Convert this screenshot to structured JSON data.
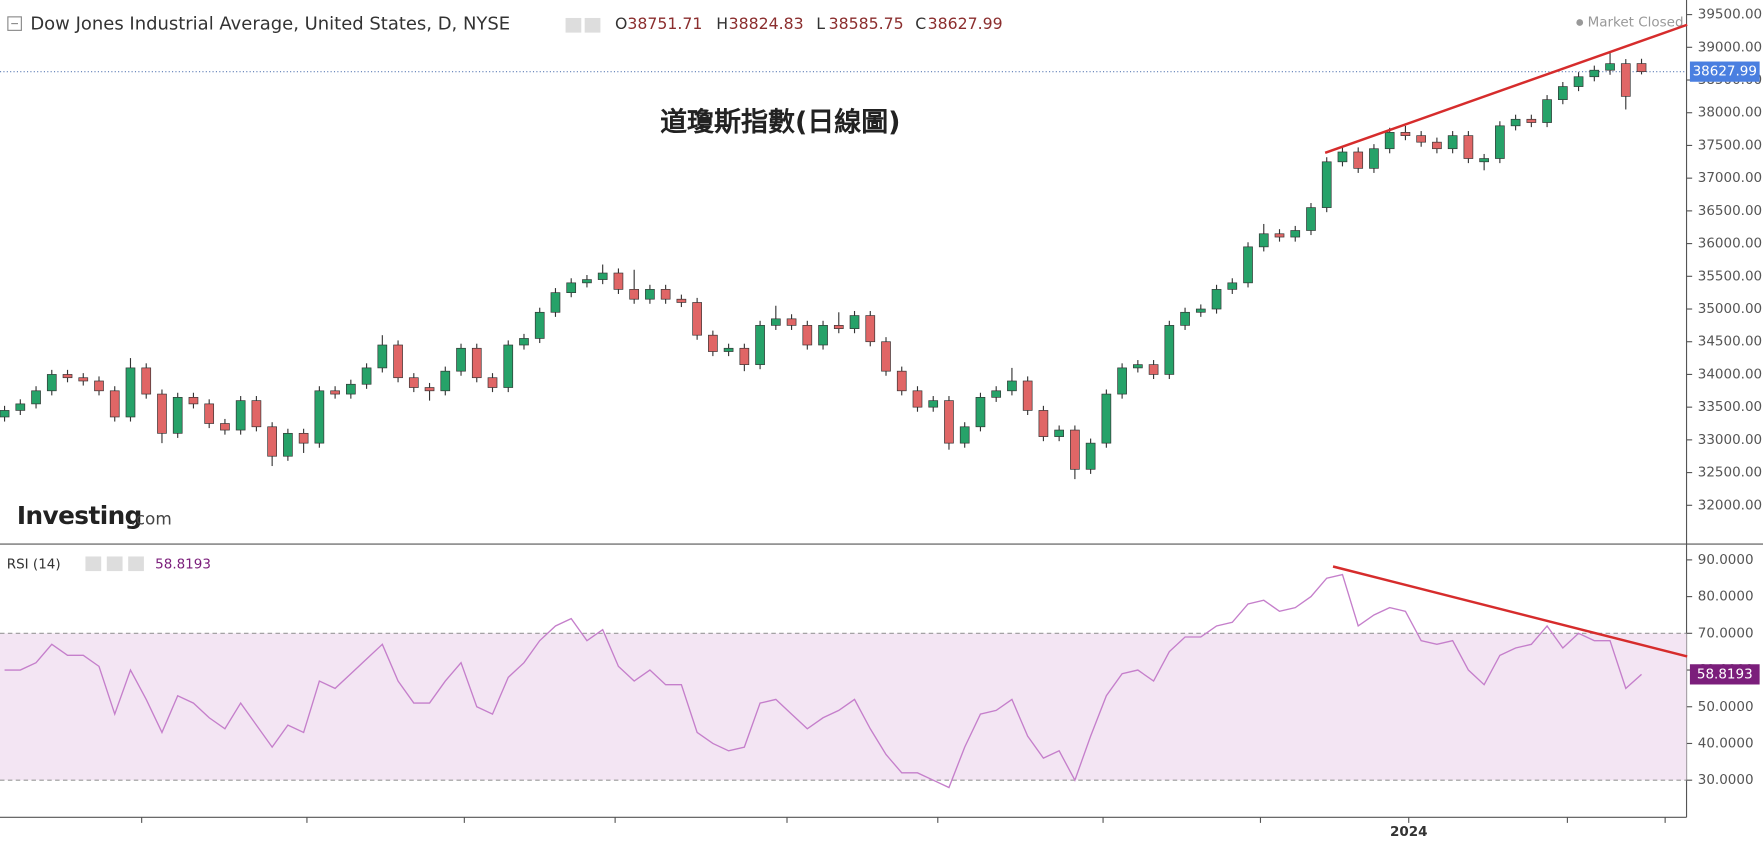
{
  "chart_data": [
    {
      "type": "candlestick",
      "title": "Dow Jones Industrial Average, United States, D, NYSE",
      "status": "Market Closed",
      "annotation": "道瓊斯指數(日線圖)",
      "logo": "Investing",
      "logo_suffix": ".com",
      "ohlc_labels": [
        "O",
        "H",
        "L",
        "C"
      ],
      "up_color": "#26a269",
      "down_color": "#e06666",
      "ohlc": [
        [
          33350,
          33520,
          33280,
          33450
        ],
        [
          33450,
          33620,
          33380,
          33550
        ],
        [
          33550,
          33820,
          33480,
          33750
        ],
        [
          33750,
          34070,
          33680,
          34000
        ],
        [
          34000,
          34070,
          33880,
          33950
        ],
        [
          33950,
          34020,
          33830,
          33900
        ],
        [
          33900,
          33970,
          33680,
          33750
        ],
        [
          33750,
          33820,
          33280,
          33350
        ],
        [
          33350,
          34250,
          33280,
          34100
        ],
        [
          34100,
          34170,
          33630,
          33700
        ],
        [
          33700,
          33770,
          32950,
          33100
        ],
        [
          33100,
          33720,
          33030,
          33650
        ],
        [
          33650,
          33720,
          33480,
          33550
        ],
        [
          33550,
          33620,
          33180,
          33250
        ],
        [
          33250,
          33320,
          33080,
          33150
        ],
        [
          33150,
          33670,
          33080,
          33600
        ],
        [
          33600,
          33670,
          33130,
          33200
        ],
        [
          33200,
          33270,
          32600,
          32750
        ],
        [
          32750,
          33170,
          32680,
          33100
        ],
        [
          33100,
          33170,
          32800,
          32950
        ],
        [
          32950,
          33820,
          32880,
          33750
        ],
        [
          33750,
          33820,
          33630,
          33700
        ],
        [
          33700,
          33920,
          33630,
          33850
        ],
        [
          33850,
          34170,
          33780,
          34100
        ],
        [
          34100,
          34600,
          34030,
          34450
        ],
        [
          34450,
          34520,
          33880,
          33950
        ],
        [
          33950,
          34020,
          33730,
          33800
        ],
        [
          33800,
          33870,
          33600,
          33750
        ],
        [
          33750,
          34120,
          33680,
          34050
        ],
        [
          34050,
          34470,
          33980,
          34400
        ],
        [
          34400,
          34470,
          33880,
          33950
        ],
        [
          33950,
          34020,
          33730,
          33800
        ],
        [
          33800,
          34520,
          33730,
          34450
        ],
        [
          34450,
          34620,
          34380,
          34550
        ],
        [
          34550,
          35020,
          34480,
          34950
        ],
        [
          34950,
          35320,
          34880,
          35250
        ],
        [
          35250,
          35470,
          35180,
          35400
        ],
        [
          35400,
          35520,
          35330,
          35450
        ],
        [
          35450,
          35680,
          35380,
          35550
        ],
        [
          35550,
          35620,
          35230,
          35300
        ],
        [
          35300,
          35600,
          35080,
          35150
        ],
        [
          35150,
          35370,
          35080,
          35300
        ],
        [
          35300,
          35370,
          35080,
          35150
        ],
        [
          35150,
          35220,
          35030,
          35100
        ],
        [
          35100,
          35170,
          34530,
          34600
        ],
        [
          34600,
          34670,
          34280,
          34350
        ],
        [
          34350,
          34470,
          34280,
          34400
        ],
        [
          34400,
          34470,
          34050,
          34150
        ],
        [
          34150,
          34820,
          34080,
          34750
        ],
        [
          34750,
          35050,
          34680,
          34850
        ],
        [
          34850,
          34920,
          34680,
          34750
        ],
        [
          34750,
          34820,
          34380,
          34450
        ],
        [
          34450,
          34820,
          34380,
          34750
        ],
        [
          34750,
          34950,
          34630,
          34700
        ],
        [
          34700,
          34970,
          34630,
          34900
        ],
        [
          34900,
          34970,
          34430,
          34500
        ],
        [
          34500,
          34570,
          33980,
          34050
        ],
        [
          34050,
          34120,
          33680,
          33750
        ],
        [
          33750,
          33820,
          33430,
          33500
        ],
        [
          33500,
          33670,
          33430,
          33600
        ],
        [
          33600,
          33670,
          32850,
          32950
        ],
        [
          32950,
          33270,
          32880,
          33200
        ],
        [
          33200,
          33720,
          33130,
          33650
        ],
        [
          33650,
          33820,
          33580,
          33750
        ],
        [
          33750,
          34100,
          33680,
          33900
        ],
        [
          33900,
          33970,
          33380,
          33450
        ],
        [
          33450,
          33520,
          32980,
          33050
        ],
        [
          33050,
          33220,
          32980,
          33150
        ],
        [
          33150,
          33220,
          32400,
          32550
        ],
        [
          32550,
          33020,
          32480,
          32950
        ],
        [
          32950,
          33770,
          32880,
          33700
        ],
        [
          33700,
          34170,
          33630,
          34100
        ],
        [
          34100,
          34220,
          34030,
          34150
        ],
        [
          34150,
          34220,
          33930,
          34000
        ],
        [
          34000,
          34820,
          33930,
          34750
        ],
        [
          34750,
          35020,
          34680,
          34950
        ],
        [
          34950,
          35070,
          34880,
          35000
        ],
        [
          35000,
          35370,
          34930,
          35300
        ],
        [
          35300,
          35470,
          35230,
          35400
        ],
        [
          35400,
          36020,
          35330,
          35950
        ],
        [
          35950,
          36300,
          35880,
          36150
        ],
        [
          36150,
          36220,
          36030,
          36100
        ],
        [
          36100,
          36270,
          36030,
          36200
        ],
        [
          36200,
          36620,
          36130,
          36550
        ],
        [
          36550,
          37320,
          36480,
          37250
        ],
        [
          37250,
          37470,
          37180,
          37400
        ],
        [
          37400,
          37470,
          37080,
          37150
        ],
        [
          37150,
          37520,
          37080,
          37450
        ],
        [
          37450,
          37770,
          37380,
          37700
        ],
        [
          37700,
          37800,
          37580,
          37650
        ],
        [
          37650,
          37720,
          37480,
          37550
        ],
        [
          37550,
          37620,
          37380,
          37450
        ],
        [
          37450,
          37720,
          37380,
          37650
        ],
        [
          37650,
          37720,
          37230,
          37300
        ],
        [
          37250,
          37370,
          37120,
          37300
        ],
        [
          37300,
          37870,
          37230,
          37800
        ],
        [
          37800,
          37970,
          37730,
          37900
        ],
        [
          37900,
          37970,
          37780,
          37850
        ],
        [
          37850,
          38270,
          37780,
          38200
        ],
        [
          38200,
          38470,
          38130,
          38400
        ],
        [
          38400,
          38620,
          38330,
          38550
        ],
        [
          38550,
          38720,
          38480,
          38650
        ],
        [
          38650,
          38920,
          38580,
          38750
        ],
        [
          38750,
          38820,
          38050,
          38250
        ],
        [
          38751.71,
          38824.83,
          38585.75,
          38627.99
        ]
      ],
      "xlim": [
        -0.29,
        106.86
      ],
      "xticks": [
        {
          "value": 8.71,
          "label": null
        },
        {
          "value": 19.21,
          "label": null
        },
        {
          "value": 29.21,
          "label": null
        },
        {
          "value": 38.79,
          "label": null
        },
        {
          "value": 49.71,
          "label": null
        },
        {
          "value": 59.29,
          "label": null
        },
        {
          "value": 69.79,
          "label": null
        },
        {
          "value": 79.79,
          "label": null
        },
        {
          "value": 89.21,
          "label": "2024"
        },
        {
          "value": 99.29,
          "label": null
        },
        {
          "value": 105.5,
          "label": null
        }
      ],
      "ylim": [
        31407,
        39723
      ],
      "yticks": [
        {
          "value": 32000,
          "label": "32000.00"
        },
        {
          "value": 32500,
          "label": "32500.00"
        },
        {
          "value": 33000,
          "label": "33000.00"
        },
        {
          "value": 33500,
          "label": "33500.00"
        },
        {
          "value": 34000,
          "label": "34000.00"
        },
        {
          "value": 34500,
          "label": "34500.00"
        },
        {
          "value": 35000,
          "label": "35000.00"
        },
        {
          "value": 35500,
          "label": "35500.00"
        },
        {
          "value": 36000,
          "label": "36000.00"
        },
        {
          "value": 36500,
          "label": "36500.00"
        },
        {
          "value": 37000,
          "label": "37000.00"
        },
        {
          "value": 37500,
          "label": "37500.00"
        },
        {
          "value": 38000,
          "label": "38000.00"
        },
        {
          "value": 38500,
          "label": "38500.00"
        },
        {
          "value": 39000,
          "label": "39000.00"
        },
        {
          "value": 39500,
          "label": "39500.00"
        }
      ],
      "price_color": "#4a7fe0",
      "trendline": {
        "x": [
          83.9,
          106.9
        ],
        "y": [
          37387,
          39345
        ],
        "color": "#d62c2c"
      }
    },
    {
      "type": "line",
      "series": [
        {
          "name": "RSI (14)",
          "color": "#c57fcb",
          "values": [
            60,
            60,
            62,
            67,
            64,
            64,
            61,
            48,
            60,
            52,
            43,
            53,
            51,
            47,
            44,
            51,
            45,
            39,
            45,
            43,
            57,
            55,
            59,
            63,
            67,
            57,
            51,
            51,
            57,
            62,
            50,
            48,
            58,
            62,
            68,
            72,
            74,
            68,
            71,
            61,
            57,
            60,
            56,
            56,
            43,
            40,
            38,
            39,
            51,
            52,
            48,
            44,
            47,
            49,
            52,
            44,
            37,
            32,
            32,
            30,
            28,
            39,
            48,
            49,
            52,
            42,
            36,
            38,
            30,
            42,
            53,
            59,
            60,
            57,
            65,
            69,
            69,
            72,
            73,
            78,
            79,
            76,
            77,
            80,
            85,
            86,
            72,
            75,
            77,
            76,
            68,
            67,
            68,
            60,
            56,
            64,
            66,
            67,
            72,
            66,
            70,
            68,
            68,
            55,
            58.8193
          ]
        }
      ],
      "value_color": "#7b1e7b",
      "xlim": [
        -0.29,
        106.86
      ],
      "ylim": [
        19.9,
        94.3
      ],
      "yticks": [
        {
          "value": 30,
          "label": "30.0000"
        },
        {
          "value": 40,
          "label": "40.0000"
        },
        {
          "value": 50,
          "label": "50.0000"
        },
        {
          "value": 60,
          "label": "60.0000"
        },
        {
          "value": 70,
          "label": "70.0000"
        },
        {
          "value": 80,
          "label": "80.0000"
        },
        {
          "value": 90,
          "label": "90.0000"
        }
      ],
      "bands": [
        30,
        70
      ],
      "band_color": "#f3e5f3",
      "trendline": {
        "x": [
          84.4,
          106.9
        ],
        "y": [
          88.2,
          63.7
        ],
        "color": "#d62c2c"
      }
    }
  ]
}
